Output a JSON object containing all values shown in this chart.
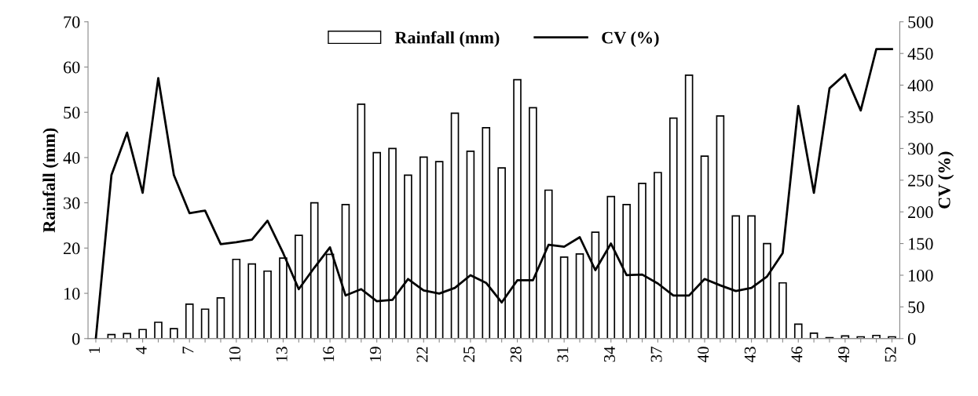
{
  "chart_data": {
    "type": "bar",
    "ylabel": "Rainfall (mm)",
    "y2label": "CV (%)",
    "categories": [
      "1",
      null,
      null,
      "4",
      null,
      null,
      "7",
      null,
      null,
      "10",
      null,
      null,
      "13",
      null,
      null,
      "16",
      null,
      null,
      "19",
      null,
      null,
      "22",
      null,
      null,
      "25",
      null,
      null,
      "28",
      null,
      null,
      "31",
      null,
      null,
      "34",
      null,
      null,
      "37",
      null,
      null,
      "40",
      null,
      null,
      "43",
      null,
      null,
      "46",
      null,
      null,
      "49",
      null,
      null,
      "52"
    ],
    "series": [
      {
        "name": "Rainfall (mm)",
        "color": "#ffffff",
        "values": [
          null,
          0.9,
          1.1,
          2.0,
          3.6,
          2.2,
          7.6,
          6.5,
          9.0,
          17.5,
          16.5,
          14.9,
          17.8,
          22.8,
          30.0,
          18.6,
          29.6,
          51.8,
          41.1,
          42.0,
          36.1,
          40.1,
          39.1,
          49.8,
          41.4,
          46.6,
          37.7,
          57.2,
          51.0,
          32.8,
          18.0,
          18.7,
          23.5,
          31.4,
          29.6,
          34.3,
          36.7,
          48.7,
          58.2,
          40.3,
          49.2,
          27.1,
          27.1,
          21.0,
          12.3,
          3.2,
          1.2,
          0.2,
          0.6,
          0.4,
          0.7,
          0.4
        ]
      },
      {
        "name": "CV (%)",
        "type": "line",
        "axis": "y2",
        "color": "#000000",
        "values": [
          0,
          258,
          325,
          230,
          411,
          258,
          198,
          202,
          149,
          152,
          156,
          186,
          135,
          78,
          112,
          144,
          68,
          78,
          59,
          61,
          94,
          76,
          71,
          80,
          100,
          88,
          57,
          92,
          92,
          148,
          145,
          160,
          108,
          150,
          100,
          101,
          87,
          68,
          68,
          94,
          84,
          75,
          80,
          98,
          135,
          367,
          230,
          395,
          417,
          360,
          457,
          457
        ]
      }
    ],
    "ylim": [
      0,
      70
    ],
    "yticks": [
      0,
      10,
      20,
      30,
      40,
      50,
      60,
      70
    ],
    "y2lim": [
      0,
      500
    ],
    "y2ticks": [
      0,
      50,
      100,
      150,
      200,
      250,
      300,
      350,
      400,
      450,
      500
    ],
    "grid": false,
    "legend": "top",
    "marker": "none",
    "line_style": "solid"
  }
}
